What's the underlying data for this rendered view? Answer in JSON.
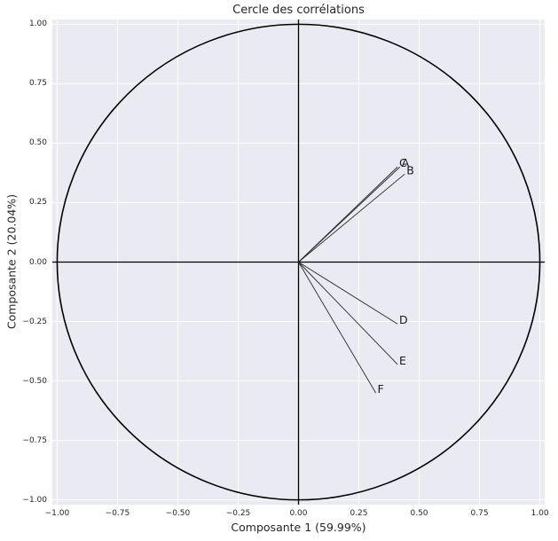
{
  "figure": {
    "title": "Cercle des corrélations",
    "xlabel": "Composante 1 (59.99%)",
    "ylabel": "Composante 2 (20.04%)"
  },
  "colors": {
    "figure_bg": "#ffffff",
    "plot_bg": "#eaeaf2",
    "grid": "#ffffff",
    "axis_line": "#000000",
    "circle": "#000000",
    "vector": "#2a2a2a",
    "text": "#262626",
    "label_text": "#1a1a1a"
  },
  "chart_data": {
    "type": "line",
    "subtype": "correlation-circle",
    "title": "Cercle des corrélations",
    "xlabel": "Composante 1 (59.99%)",
    "ylabel": "Composante 2 (20.04%)",
    "xlim": [
      -1.02,
      1.02
    ],
    "ylim": [
      -1.02,
      1.02
    ],
    "grid": true,
    "legend": false,
    "circle_radius": 1.0,
    "vectors": [
      {
        "label": "A",
        "x": 0.42,
        "y": 0.4
      },
      {
        "label": "B",
        "x": 0.44,
        "y": 0.37
      },
      {
        "label": "C",
        "x": 0.41,
        "y": 0.4
      },
      {
        "label": "D",
        "x": 0.41,
        "y": -0.26
      },
      {
        "label": "E",
        "x": 0.41,
        "y": -0.43
      },
      {
        "label": "F",
        "x": 0.32,
        "y": -0.55
      }
    ],
    "x_ticks": [
      {
        "value": -1.0,
        "label": "−1.00"
      },
      {
        "value": -0.75,
        "label": "−0.75"
      },
      {
        "value": -0.5,
        "label": "−0.50"
      },
      {
        "value": -0.25,
        "label": "−0.25"
      },
      {
        "value": 0.0,
        "label": "0.00"
      },
      {
        "value": 0.25,
        "label": "0.25"
      },
      {
        "value": 0.5,
        "label": "0.50"
      },
      {
        "value": 0.75,
        "label": "0.75"
      },
      {
        "value": 1.0,
        "label": "1.00"
      }
    ],
    "y_ticks": [
      {
        "value": 1.0,
        "label": "1.00"
      },
      {
        "value": 0.75,
        "label": "0.75"
      },
      {
        "value": 0.5,
        "label": "0.50"
      },
      {
        "value": 0.25,
        "label": "0.25"
      },
      {
        "value": 0.0,
        "label": "0.00"
      },
      {
        "value": -0.25,
        "label": "−0.25"
      },
      {
        "value": -0.5,
        "label": "−0.50"
      },
      {
        "value": -0.75,
        "label": "−0.75"
      },
      {
        "value": -1.0,
        "label": "−1.00"
      }
    ]
  }
}
